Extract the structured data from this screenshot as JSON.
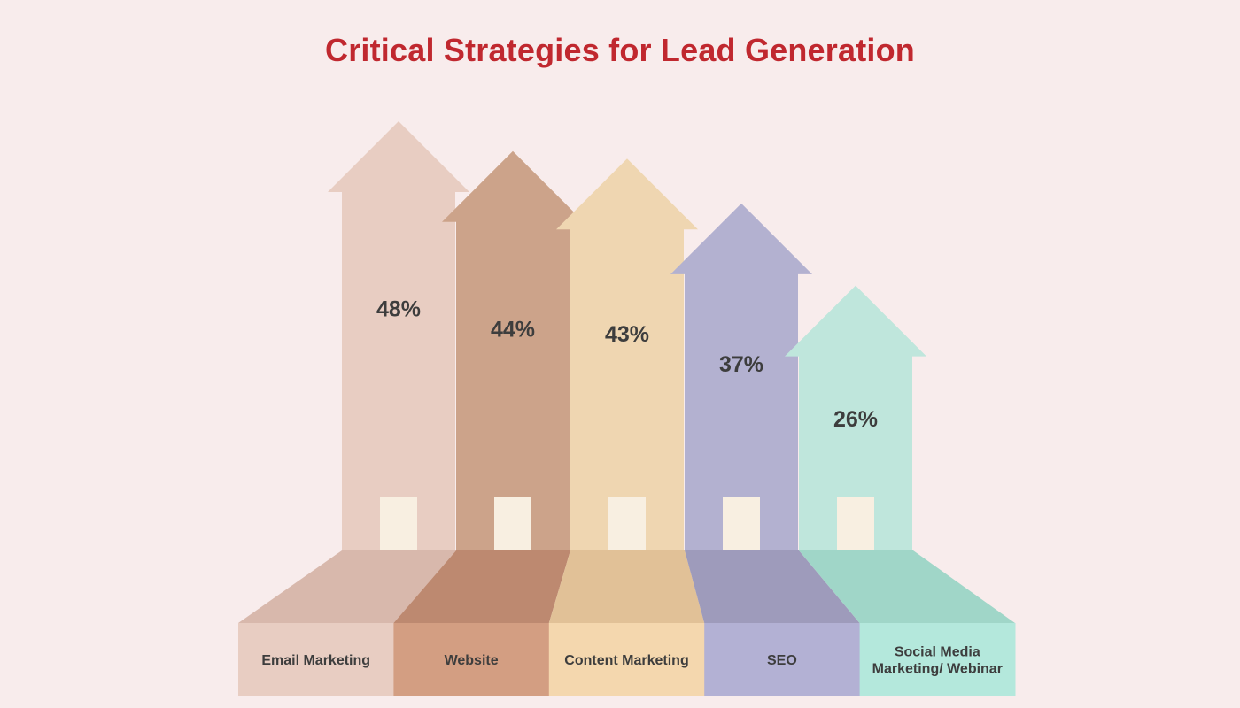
{
  "chart_data": {
    "type": "bar",
    "title": "Critical Strategies for Lead Generation",
    "categories": [
      "Email Marketing",
      "Website",
      "Content Marketing",
      "SEO",
      "Social Media Marketing/ Webinar"
    ],
    "category_lines": [
      [
        "Email Marketing"
      ],
      [
        "Website"
      ],
      [
        "Content Marketing"
      ],
      [
        "SEO"
      ],
      [
        "Social Media",
        "Marketing/ Webinar"
      ]
    ],
    "values": [
      48,
      44,
      43,
      37,
      26
    ],
    "value_labels": [
      "48%",
      "44%",
      "43%",
      "37%",
      "26%"
    ],
    "unit": "%",
    "colors": {
      "arrows": [
        "#e8cdc2",
        "#cca38a",
        "#efd6b1",
        "#b3b1d0",
        "#bfe6dc"
      ],
      "floor_top": [
        "#d8b8ac",
        "#bd8970",
        "#e1c197",
        "#9e9bbb",
        "#a0d6c8"
      ],
      "floor_front": [
        "#e8cdc2",
        "#d39e82",
        "#f4d7ae",
        "#b3b1d4",
        "#b4e8dc"
      ],
      "door": "#f8efe1",
      "title": "#c0282f",
      "text": "#3d3d3d",
      "background": "#f8ecec"
    }
  }
}
